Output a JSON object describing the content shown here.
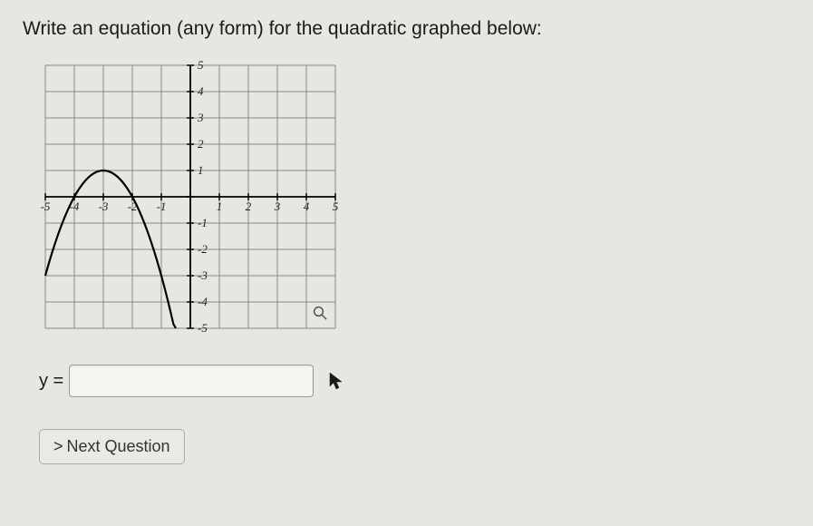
{
  "question": {
    "text": "Write an equation (any form) for the quadratic graphed below:"
  },
  "graph": {
    "type": "scatter-line",
    "xlim": [
      -5,
      5
    ],
    "ylim": [
      -5,
      5
    ],
    "xtick_step": 1,
    "ytick_step": 1,
    "x_labels": [
      "-5",
      "-4",
      "-3",
      "-2",
      "-1",
      "",
      "1",
      "2",
      "3",
      "4",
      "5"
    ],
    "y_labels": [
      "-5",
      "-4",
      "-3",
      "-2",
      "-1",
      "",
      "1",
      "2",
      "3",
      "4",
      "5"
    ],
    "grid_color": "#888888",
    "axis_color": "#000000",
    "background_color": "#e8e6e2",
    "curve": {
      "vertex": [
        -3,
        1
      ],
      "a": -1,
      "color": "#000000",
      "width": 2.2,
      "points": [
        [
          -5.45,
          -5
        ],
        [
          -5,
          -3
        ],
        [
          -4.5,
          -1.25
        ],
        [
          -4,
          0
        ],
        [
          -3.5,
          0.75
        ],
        [
          -3,
          1
        ],
        [
          -2.5,
          0.75
        ],
        [
          -2,
          0
        ],
        [
          -1.5,
          -1.25
        ],
        [
          -1,
          -3
        ],
        [
          -0.55,
          -5
        ]
      ]
    },
    "label_fontsize": 13,
    "grid_width": 1
  },
  "answer": {
    "label": "y =",
    "value": "",
    "placeholder": ""
  },
  "next_button": {
    "label": "Next Question",
    "chevron": ">"
  }
}
